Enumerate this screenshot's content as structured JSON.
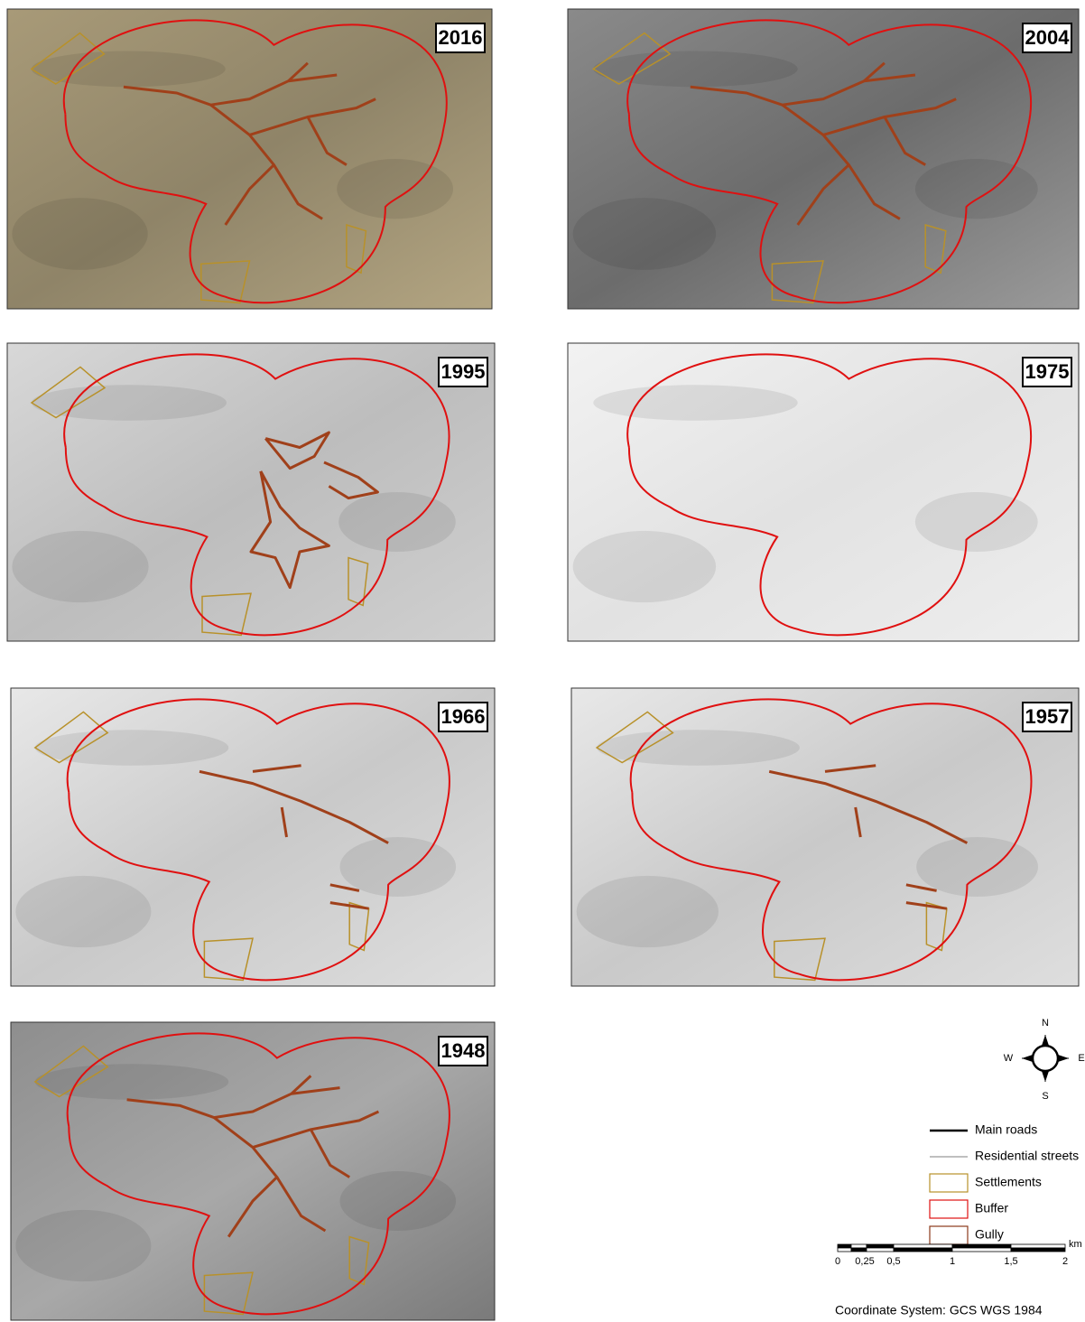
{
  "panels": [
    {
      "year": "2016"
    },
    {
      "year": "2004"
    },
    {
      "year": "1995"
    },
    {
      "year": "1975"
    },
    {
      "year": "1966"
    },
    {
      "year": "1957"
    },
    {
      "year": "1948"
    }
  ],
  "compass": {
    "north": "N",
    "west": "W",
    "east": "E",
    "south": "S"
  },
  "legend": {
    "items": [
      {
        "label": "Main roads"
      },
      {
        "label": "Residential streets"
      },
      {
        "label": "Settlements"
      },
      {
        "label": "Buffer"
      },
      {
        "label": "Gully"
      }
    ]
  },
  "scale_bar": {
    "labels": [
      "0",
      "0,25",
      "0,5",
      "1",
      "1,5",
      "2"
    ],
    "unit": "km"
  },
  "coordinate_system": "Coordinate System: GCS WGS 1984"
}
